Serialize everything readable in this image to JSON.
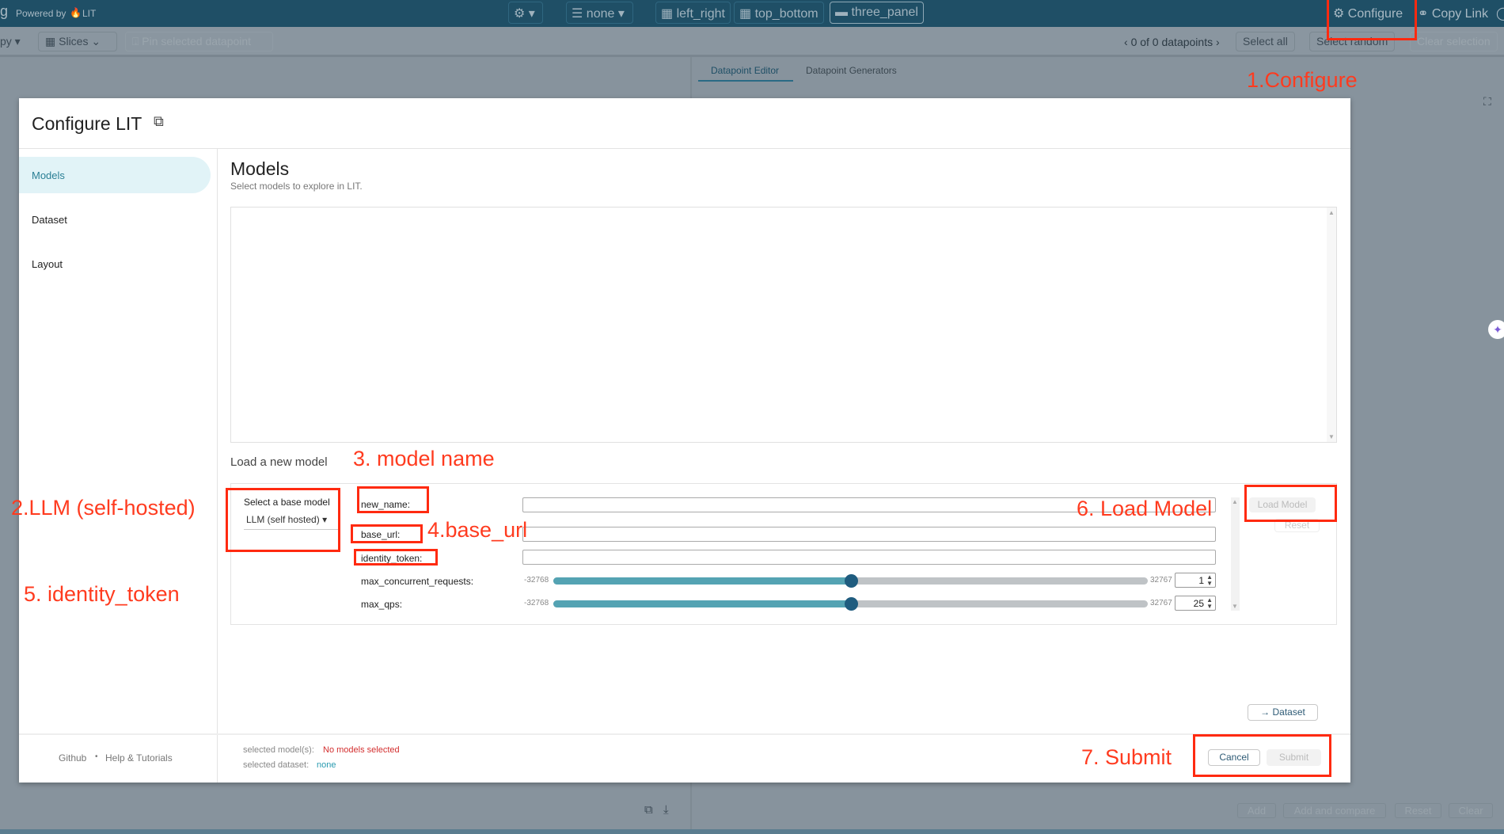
{
  "topbar": {
    "app_letter": "g",
    "powered_by": "Powered by",
    "lit": "LIT",
    "model_icon": "robot-icon",
    "color_by": "none",
    "layouts": [
      "left_right",
      "top_bottom",
      "three_panel"
    ],
    "configure": "Configure",
    "copy_link": "Copy Link"
  },
  "toolbar": {
    "group_by_tail": "py ▾",
    "slices": "Slices",
    "pin": "Pin selected datapoint",
    "datapoints": "0 of 0 datapoints",
    "select_all": "Select all",
    "select_random": "Select random",
    "clear_selection": "Clear selection"
  },
  "right_panel": {
    "tabs": [
      "Datapoint Editor",
      "Datapoint Generators"
    ],
    "active_tab": "Datapoint Editor",
    "buttons": [
      "Add",
      "Add and compare",
      "Reset",
      "Clear"
    ]
  },
  "modal": {
    "title": "Configure LIT",
    "sidebar": [
      "Models",
      "Dataset",
      "Layout"
    ],
    "active": "Models",
    "heading": "Models",
    "subtitle": "Select models to explore in LIT.",
    "load_new": "Load a new model",
    "form": {
      "base_model_label": "Select a base model",
      "base_model_value": "LLM (self hosted)",
      "fields": [
        {
          "label": "new_name:",
          "value": ""
        },
        {
          "label": "base_url:",
          "value": ""
        },
        {
          "label": "identity_token:",
          "value": ""
        }
      ],
      "sliders": [
        {
          "label": "max_concurrent_requests:",
          "min": "-32768",
          "max": "32767",
          "value": "1"
        },
        {
          "label": "max_qps:",
          "min": "-32768",
          "max": "32767",
          "value": "25"
        }
      ],
      "load_model": "Load Model",
      "reset": "Reset"
    },
    "next_button": "→ Dataset",
    "footer": {
      "github": "Github",
      "sep": "•",
      "help": "Help & Tutorials",
      "models_label": "selected model(s):",
      "models_value": "No models selected",
      "dataset_label": "selected dataset:",
      "dataset_value": "none",
      "cancel": "Cancel",
      "submit": "Submit"
    }
  },
  "annotations": {
    "a1": "1.Configure",
    "a2": "2.LLM (self-hosted)",
    "a3": "3. model name",
    "a4": "4.base_url",
    "a5": "5. identity_token",
    "a6": "6. Load Model",
    "a7": "7. Submit"
  },
  "colors": {
    "annotation": "#ff3b1f",
    "accent": "#1f5c7f",
    "error": "#d32f2f",
    "link": "#2a9bb0"
  }
}
